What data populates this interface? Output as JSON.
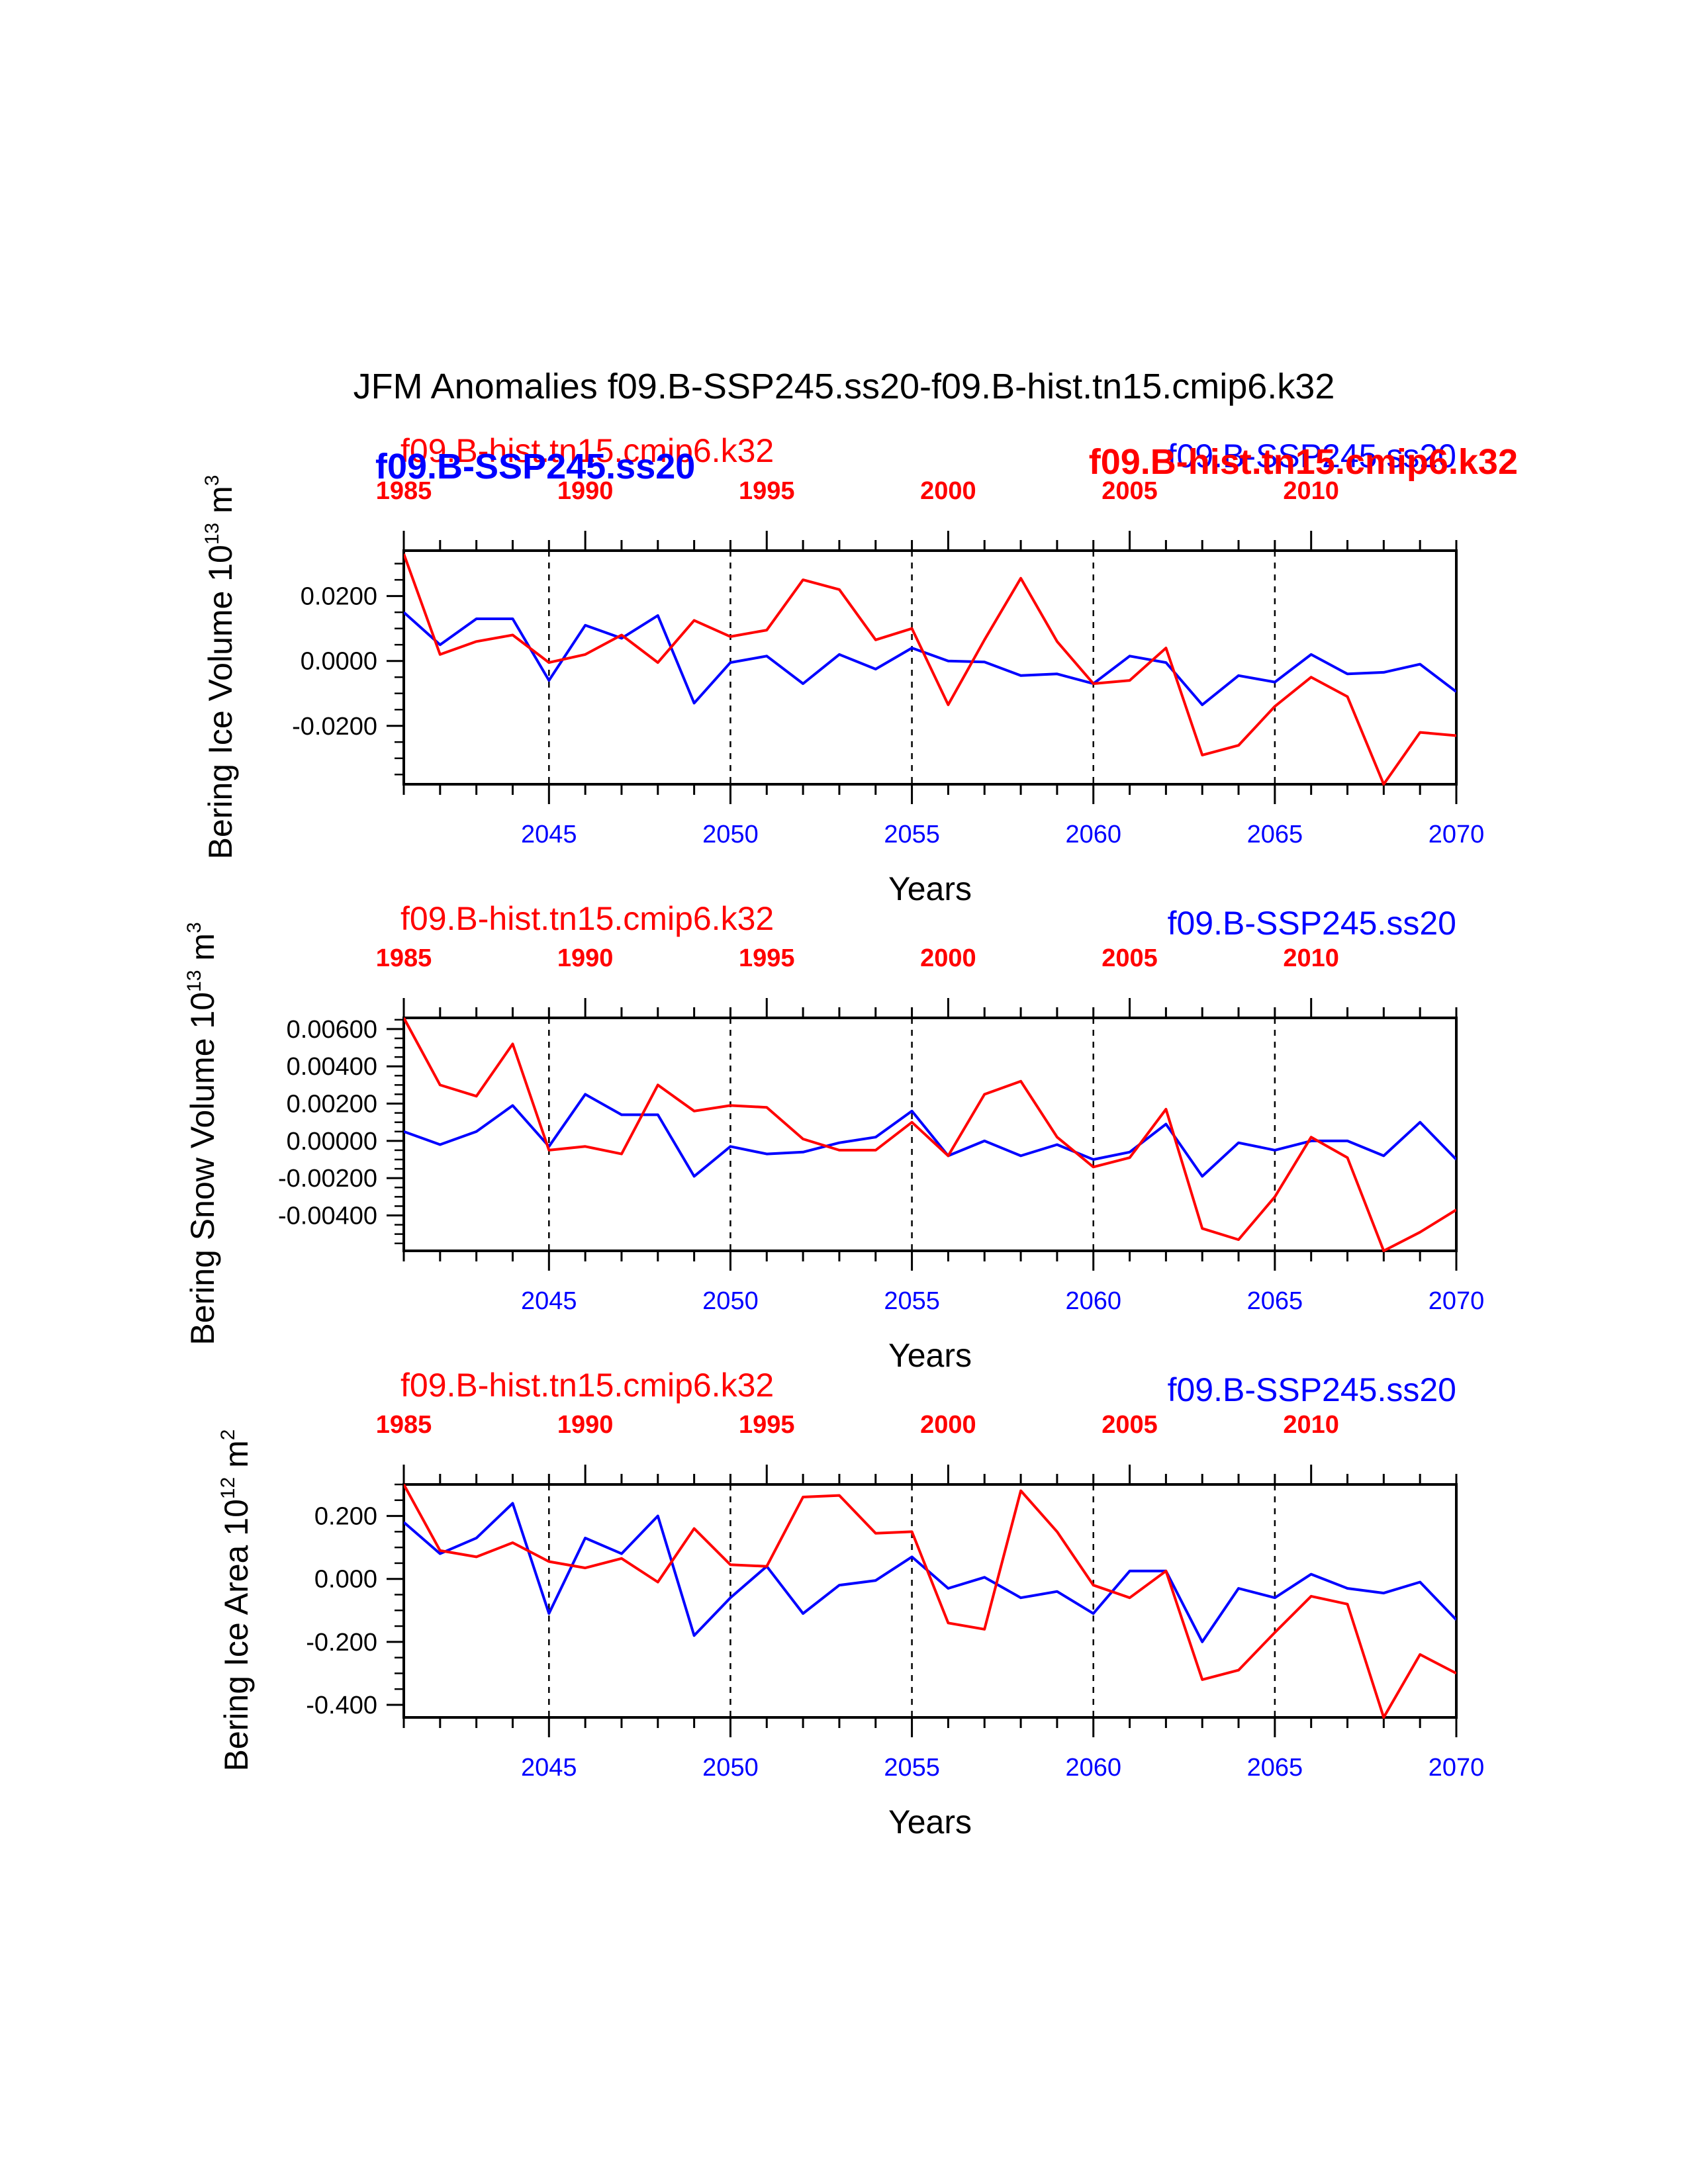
{
  "figure": {
    "title": "JFM Anomalies f09.B-SSP245.ss20-f09.B-hist.tn15.cmip6.k32",
    "colors": {
      "ssp": "#0000ff",
      "hist": "#ff0000",
      "axes": "#000000"
    }
  },
  "chart_data": [
    {
      "type": "line",
      "ylabel_main": "Bering Ice Volume 10",
      "ylabel_exp": "13",
      "ylabel_unit": " m",
      "ylabel_unit_exp": "3",
      "xlabel": "Years",
      "overlay_labels": {
        "hist": "f09.B-hist.tn15.cmip6.k32",
        "ssp": "f09.B-SSP245.ss20",
        "hist_bold_left": "f09.B-hist.tn15.cmip6.k32",
        "ssp_bold_left": "f09.B-SSP245.ss20",
        "hist_bold_right": "f09.B-hist.tn15.cmip6.k32",
        "ssp_right": "f09.B-SSP245.ss20"
      },
      "yticks": [
        "0.0200",
        "0.0000",
        "-0.0200"
      ],
      "ytick_values": [
        0.02,
        0.0,
        -0.02
      ],
      "ylim": [
        -0.038,
        0.034
      ],
      "bottom_x": {
        "ticks": [
          "2045",
          "2050",
          "2055",
          "2060",
          "2065",
          "2070"
        ],
        "range": [
          2041,
          2070
        ]
      },
      "top_x": {
        "ticks": [
          "1985",
          "1990",
          "1995",
          "2000",
          "2005",
          "2010"
        ],
        "range": [
          1985,
          2014
        ]
      },
      "series": [
        {
          "name": "f09.B-SSP245.ss20",
          "color": "#0000ff",
          "x": [
            2041,
            2042,
            2043,
            2044,
            2045,
            2046,
            2047,
            2048,
            2049,
            2050,
            2051,
            2052,
            2053,
            2054,
            2055,
            2056,
            2057,
            2058,
            2059,
            2060,
            2061,
            2062,
            2063,
            2064,
            2065,
            2066,
            2067,
            2068,
            2069,
            2070
          ],
          "values": [
            0.015,
            0.005,
            0.013,
            0.013,
            -0.006,
            0.011,
            0.007,
            0.014,
            -0.013,
            -0.0005,
            0.0015,
            -0.007,
            0.002,
            -0.0025,
            0.004,
            0.0,
            -0.0003,
            -0.0045,
            -0.004,
            -0.007,
            0.0015,
            -0.0005,
            -0.0135,
            -0.0045,
            -0.0065,
            0.002,
            -0.004,
            -0.0035,
            -0.001,
            -0.0095
          ]
        },
        {
          "name": "f09.B-hist.tn15.cmip6.k32",
          "color": "#ff0000",
          "x": [
            2041,
            2042,
            2043,
            2044,
            2045,
            2046,
            2047,
            2048,
            2049,
            2050,
            2051,
            2052,
            2053,
            2054,
            2055,
            2056,
            2057,
            2058,
            2059,
            2060,
            2061,
            2062,
            2063,
            2064,
            2065,
            2066,
            2067,
            2068,
            2069,
            2070
          ],
          "values": [
            0.033,
            0.002,
            0.006,
            0.008,
            -0.0005,
            0.002,
            0.008,
            -0.0005,
            0.0125,
            0.0075,
            0.0095,
            0.025,
            0.022,
            0.0065,
            0.01,
            -0.0135,
            0.0065,
            0.0255,
            0.006,
            -0.007,
            -0.006,
            0.004,
            -0.029,
            -0.026,
            -0.014,
            -0.005,
            -0.011,
            -0.038,
            -0.022,
            -0.023
          ]
        }
      ]
    },
    {
      "type": "line",
      "ylabel_main": "Bering Snow Volume 10",
      "ylabel_exp": "13",
      "ylabel_unit": " m",
      "ylabel_unit_exp": "3",
      "xlabel": "Years",
      "overlay_labels": {
        "hist": "f09.B-hist.tn15.cmip6.k32",
        "ssp": "f09.B-SSP245.ss20"
      },
      "yticks": [
        "0.00600",
        "0.00400",
        "0.00200",
        "0.00000",
        "-0.00200",
        "-0.00400"
      ],
      "ytick_values": [
        0.006,
        0.004,
        0.002,
        0.0,
        -0.002,
        -0.004
      ],
      "ylim": [
        -0.0059,
        0.0066
      ],
      "bottom_x": {
        "ticks": [
          "2045",
          "2050",
          "2055",
          "2060",
          "2065",
          "2070"
        ],
        "range": [
          2041,
          2070
        ]
      },
      "top_x": {
        "ticks": [
          "1985",
          "1990",
          "1995",
          "2000",
          "2005",
          "2010"
        ],
        "range": [
          1985,
          2014
        ]
      },
      "series": [
        {
          "name": "f09.B-SSP245.ss20",
          "color": "#0000ff",
          "x": [
            2041,
            2042,
            2043,
            2044,
            2045,
            2046,
            2047,
            2048,
            2049,
            2050,
            2051,
            2052,
            2053,
            2054,
            2055,
            2056,
            2057,
            2058,
            2059,
            2060,
            2061,
            2062,
            2063,
            2064,
            2065,
            2066,
            2067,
            2068,
            2069,
            2070
          ],
          "values": [
            0.0005,
            -0.0002,
            0.0005,
            0.0019,
            -0.0003,
            0.0025,
            0.0014,
            0.0014,
            -0.0019,
            -0.0003,
            -0.0007,
            -0.0006,
            -0.0001,
            0.0002,
            0.0016,
            -0.0008,
            0.0,
            -0.0008,
            -0.0002,
            -0.001,
            -0.0006,
            0.0009,
            -0.0019,
            -0.0001,
            -0.0005,
            0.0,
            0.0,
            -0.0008,
            0.001,
            -0.001
          ]
        },
        {
          "name": "f09.B-hist.tn15.cmip6.k32",
          "color": "#ff0000",
          "x": [
            2041,
            2042,
            2043,
            2044,
            2045,
            2046,
            2047,
            2048,
            2049,
            2050,
            2051,
            2052,
            2053,
            2054,
            2055,
            2056,
            2057,
            2058,
            2059,
            2060,
            2061,
            2062,
            2063,
            2064,
            2065,
            2066,
            2067,
            2068,
            2069,
            2070
          ],
          "values": [
            0.0066,
            0.003,
            0.0024,
            0.0052,
            -0.0005,
            -0.0003,
            -0.0007,
            0.003,
            0.0016,
            0.0019,
            0.0018,
            0.0001,
            -0.0005,
            -0.0005,
            0.001,
            -0.0008,
            0.0025,
            0.0032,
            0.0002,
            -0.0014,
            -0.0009,
            0.0017,
            -0.0047,
            -0.0053,
            -0.003,
            0.0002,
            -0.0009,
            -0.0059,
            -0.0049,
            -0.0037
          ]
        }
      ]
    },
    {
      "type": "line",
      "ylabel_main": "Bering Ice Area 10",
      "ylabel_exp": "12",
      "ylabel_unit": " m",
      "ylabel_unit_exp": "2",
      "xlabel": "Years",
      "overlay_labels": {
        "hist": "f09.B-hist.tn15.cmip6.k32",
        "ssp": "f09.B-SSP245.ss20"
      },
      "yticks": [
        "0.200",
        "0.000",
        "-0.200",
        "-0.400"
      ],
      "ytick_values": [
        0.2,
        0.0,
        -0.2,
        -0.4
      ],
      "ylim": [
        -0.44,
        0.3
      ],
      "bottom_x": {
        "ticks": [
          "2045",
          "2050",
          "2055",
          "2060",
          "2065",
          "2070"
        ],
        "range": [
          2041,
          2070
        ]
      },
      "top_x": {
        "ticks": [
          "1985",
          "1990",
          "1995",
          "2000",
          "2005",
          "2010"
        ],
        "range": [
          1985,
          2014
        ]
      },
      "series": [
        {
          "name": "f09.B-SSP245.ss20",
          "color": "#0000ff",
          "x": [
            2041,
            2042,
            2043,
            2044,
            2045,
            2046,
            2047,
            2048,
            2049,
            2050,
            2051,
            2052,
            2053,
            2054,
            2055,
            2056,
            2057,
            2058,
            2059,
            2060,
            2061,
            2062,
            2063,
            2064,
            2065,
            2066,
            2067,
            2068,
            2069,
            2070
          ],
          "values": [
            0.18,
            0.08,
            0.13,
            0.24,
            -0.11,
            0.13,
            0.08,
            0.2,
            -0.18,
            -0.06,
            0.04,
            -0.11,
            -0.02,
            -0.005,
            0.07,
            -0.03,
            0.005,
            -0.06,
            -0.04,
            -0.11,
            0.025,
            0.025,
            -0.2,
            -0.03,
            -0.06,
            0.015,
            -0.03,
            -0.045,
            -0.01,
            -0.13
          ]
        },
        {
          "name": "f09.B-hist.tn15.cmip6.k32",
          "color": "#ff0000",
          "x": [
            2041,
            2042,
            2043,
            2044,
            2045,
            2046,
            2047,
            2048,
            2049,
            2050,
            2051,
            2052,
            2053,
            2054,
            2055,
            2056,
            2057,
            2058,
            2059,
            2060,
            2061,
            2062,
            2063,
            2064,
            2065,
            2066,
            2067,
            2068,
            2069,
            2070
          ],
          "values": [
            0.3,
            0.09,
            0.07,
            0.115,
            0.055,
            0.035,
            0.065,
            -0.01,
            0.16,
            0.045,
            0.04,
            0.26,
            0.265,
            0.145,
            0.15,
            -0.14,
            -0.16,
            0.28,
            0.15,
            -0.02,
            -0.06,
            0.025,
            -0.32,
            -0.29,
            -0.17,
            -0.055,
            -0.08,
            -0.44,
            -0.24,
            -0.3
          ]
        }
      ]
    }
  ]
}
